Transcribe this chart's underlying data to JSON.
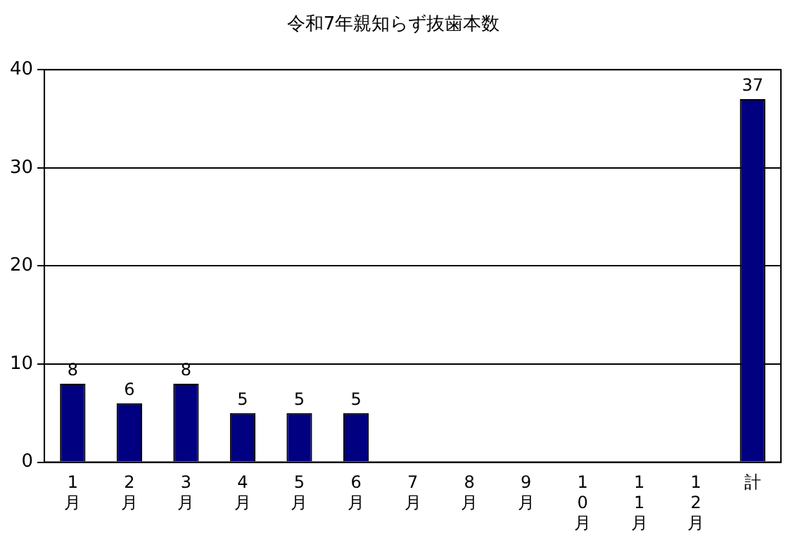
{
  "chart_data": {
    "type": "bar",
    "title": "令和7年親知らず抜歯本数",
    "categories": [
      "1月",
      "2月",
      "3月",
      "4月",
      "5月",
      "6月",
      "7月",
      "8月",
      "9月",
      "10月",
      "11月",
      "12月",
      "計"
    ],
    "values": [
      8,
      6,
      8,
      5,
      5,
      5,
      null,
      null,
      null,
      null,
      null,
      null,
      37
    ],
    "color": "#000080",
    "ylim": [
      0,
      40
    ],
    "yticks": [
      0,
      10,
      20,
      30,
      40
    ],
    "grid": "y",
    "data_labels": true,
    "legend": false
  }
}
